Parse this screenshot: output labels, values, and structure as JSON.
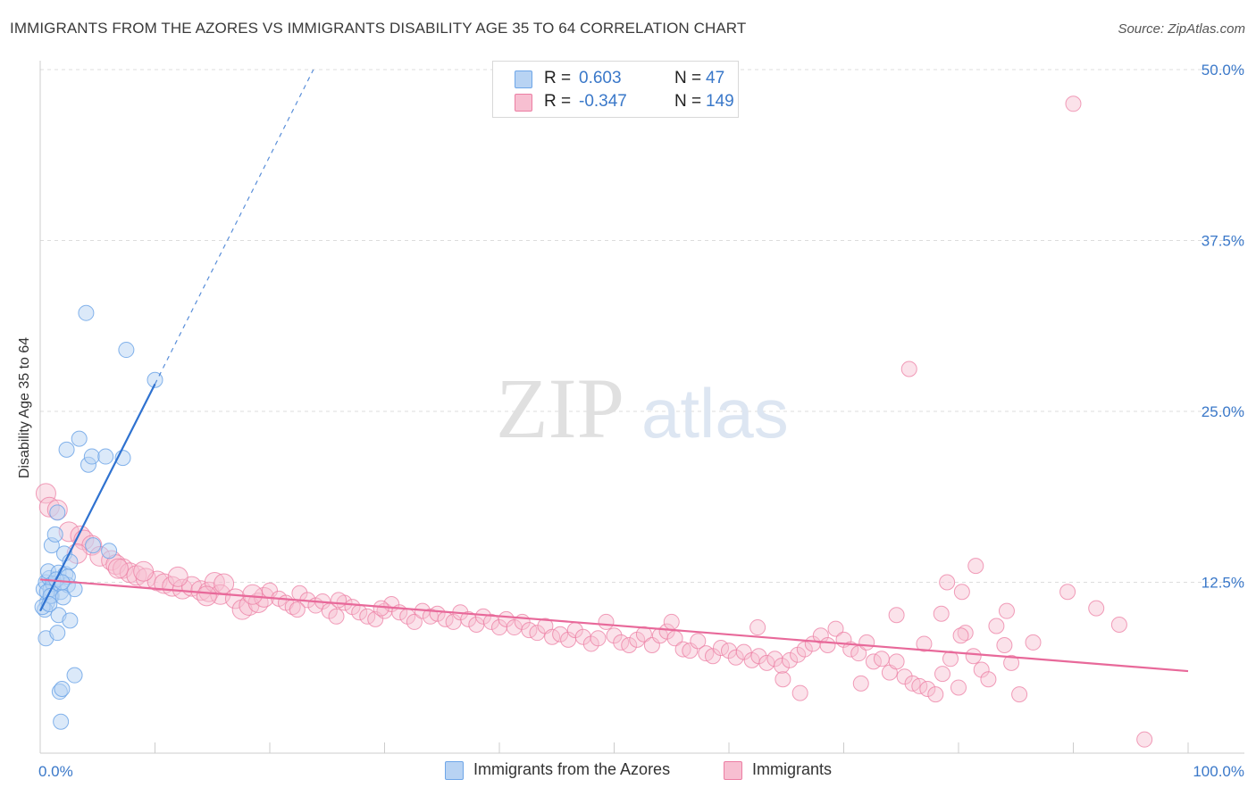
{
  "title": "IMMIGRANTS FROM THE AZORES VS IMMIGRANTS DISABILITY AGE 35 TO 64 CORRELATION CHART",
  "source": "Source: ZipAtlas.com",
  "watermark": {
    "zip": "ZIP",
    "atlas": "atlas"
  },
  "colors": {
    "blue": "#6ea6e8",
    "blue_fill": "#b8d3f3",
    "blue_line": "#2f72d0",
    "pink": "#ec7ea3",
    "pink_fill": "#f7bfd1",
    "pink_line": "#e8699a",
    "axis_text": "#3a78c9",
    "grid": "#dddddd"
  },
  "legend": {
    "r_label": "R =",
    "n_label": "N =",
    "rows": [
      {
        "r": "0.603",
        "n": "47"
      },
      {
        "r": "-0.347",
        "n": "149"
      }
    ]
  },
  "chart_data": {
    "type": "scatter",
    "title": "IMMIGRANTS FROM THE AZORES VS IMMIGRANTS DISABILITY AGE 35 TO 64 CORRELATION CHART",
    "xlabel": "",
    "ylabel": "Disability Age 35 to 64",
    "xlim": [
      0,
      100
    ],
    "ylim": [
      0,
      50
    ],
    "x_tick_labels": [
      "0.0%",
      "100.0%"
    ],
    "y_ticks": [
      12.5,
      25.0,
      37.5,
      50.0
    ],
    "y_tick_labels": [
      "12.5%",
      "25.0%",
      "37.5%",
      "50.0%"
    ],
    "grid": true,
    "series": [
      {
        "name": "Immigrants from the Azores",
        "r": 0.603,
        "n": 47,
        "trend": {
          "x1": 0.0,
          "y1": 10.4,
          "x2": 10.0,
          "y2": 27.0,
          "dash_to_x": 23.8,
          "dash_to_y": 50.0
        },
        "points": [
          [
            0.3,
            12.0
          ],
          [
            0.5,
            12.5
          ],
          [
            0.6,
            11.0
          ],
          [
            0.4,
            10.5
          ],
          [
            0.8,
            12.8
          ],
          [
            1.0,
            11.5
          ],
          [
            1.2,
            12.3
          ],
          [
            0.7,
            13.3
          ],
          [
            0.2,
            10.7
          ],
          [
            0.5,
            8.4
          ],
          [
            1.0,
            15.2
          ],
          [
            1.3,
            16.0
          ],
          [
            1.5,
            17.6
          ],
          [
            1.6,
            10.1
          ],
          [
            1.5,
            8.8
          ],
          [
            1.8,
            11.8
          ],
          [
            1.6,
            13.2
          ],
          [
            2.2,
            13.1
          ],
          [
            2.4,
            12.3
          ],
          [
            2.1,
            14.6
          ],
          [
            2.6,
            14.0
          ],
          [
            2.4,
            12.9
          ],
          [
            2.6,
            9.7
          ],
          [
            3.0,
            12.0
          ],
          [
            2.3,
            22.2
          ],
          [
            3.4,
            23.0
          ],
          [
            4.2,
            21.1
          ],
          [
            4.5,
            21.7
          ],
          [
            5.7,
            21.7
          ],
          [
            4.6,
            15.2
          ],
          [
            7.2,
            21.6
          ],
          [
            7.5,
            29.5
          ],
          [
            10.0,
            27.3
          ],
          [
            4.0,
            32.2
          ],
          [
            1.7,
            4.5
          ],
          [
            1.9,
            4.7
          ],
          [
            3.0,
            5.7
          ],
          [
            1.8,
            2.3
          ],
          [
            6.0,
            14.8
          ],
          [
            0.9,
            12.0
          ],
          [
            1.1,
            12.4
          ],
          [
            0.6,
            11.8
          ],
          [
            0.9,
            11.5
          ],
          [
            1.4,
            12.7
          ],
          [
            1.9,
            12.5
          ],
          [
            2.0,
            11.4
          ],
          [
            0.8,
            10.9
          ]
        ]
      },
      {
        "name": "Immigrants",
        "r": -0.347,
        "n": 149,
        "trend": {
          "x1": 0.0,
          "y1": 12.7,
          "x2": 100.0,
          "y2": 6.0
        },
        "points": [
          [
            0.5,
            19.0
          ],
          [
            0.8,
            18.0
          ],
          [
            1.5,
            17.8
          ],
          [
            2.5,
            16.2
          ],
          [
            3.5,
            15.9
          ],
          [
            3.8,
            15.6
          ],
          [
            4.5,
            15.2
          ],
          [
            5.2,
            14.4
          ],
          [
            6.2,
            14.1
          ],
          [
            6.6,
            13.8
          ],
          [
            7.2,
            13.5
          ],
          [
            7.8,
            13.2
          ],
          [
            8.4,
            13.0
          ],
          [
            9.2,
            12.8
          ],
          [
            10.2,
            12.6
          ],
          [
            10.8,
            12.4
          ],
          [
            11.5,
            12.2
          ],
          [
            12.4,
            12.0
          ],
          [
            13.2,
            12.2
          ],
          [
            14.0,
            11.9
          ],
          [
            14.7,
            11.8
          ],
          [
            15.2,
            12.5
          ],
          [
            15.7,
            11.6
          ],
          [
            16.0,
            12.4
          ],
          [
            17.0,
            11.3
          ],
          [
            17.6,
            10.5
          ],
          [
            18.2,
            10.8
          ],
          [
            19.0,
            11.0
          ],
          [
            19.5,
            11.4
          ],
          [
            20.0,
            11.9
          ],
          [
            20.8,
            11.3
          ],
          [
            21.4,
            11.0
          ],
          [
            22.0,
            10.7
          ],
          [
            22.6,
            11.7
          ],
          [
            23.3,
            11.2
          ],
          [
            24.0,
            10.8
          ],
          [
            24.6,
            11.1
          ],
          [
            25.2,
            10.4
          ],
          [
            25.8,
            10.0
          ],
          [
            26.5,
            11.0
          ],
          [
            27.2,
            10.7
          ],
          [
            27.8,
            10.3
          ],
          [
            28.5,
            10.0
          ],
          [
            29.2,
            9.8
          ],
          [
            30.0,
            10.4
          ],
          [
            30.6,
            10.9
          ],
          [
            31.3,
            10.3
          ],
          [
            32.0,
            10.0
          ],
          [
            32.6,
            9.6
          ],
          [
            33.3,
            10.4
          ],
          [
            34.0,
            10.0
          ],
          [
            34.6,
            10.2
          ],
          [
            35.3,
            9.8
          ],
          [
            36.0,
            9.6
          ],
          [
            36.6,
            10.3
          ],
          [
            37.3,
            9.8
          ],
          [
            38.0,
            9.4
          ],
          [
            38.6,
            10.0
          ],
          [
            39.3,
            9.6
          ],
          [
            40.0,
            9.2
          ],
          [
            40.6,
            9.8
          ],
          [
            41.3,
            9.2
          ],
          [
            42.0,
            9.6
          ],
          [
            42.6,
            9.0
          ],
          [
            43.3,
            8.8
          ],
          [
            44.0,
            9.3
          ],
          [
            44.6,
            8.5
          ],
          [
            45.3,
            8.7
          ],
          [
            46.0,
            8.3
          ],
          [
            46.6,
            9.0
          ],
          [
            47.3,
            8.5
          ],
          [
            48.0,
            8.0
          ],
          [
            48.6,
            8.4
          ],
          [
            49.3,
            9.6
          ],
          [
            50.0,
            8.6
          ],
          [
            50.6,
            8.1
          ],
          [
            51.3,
            7.9
          ],
          [
            52.0,
            8.3
          ],
          [
            52.6,
            8.7
          ],
          [
            53.3,
            7.9
          ],
          [
            54.0,
            8.6
          ],
          [
            54.6,
            8.9
          ],
          [
            55.3,
            8.4
          ],
          [
            56.0,
            7.6
          ],
          [
            56.6,
            7.5
          ],
          [
            57.3,
            8.2
          ],
          [
            58.0,
            7.3
          ],
          [
            58.6,
            7.1
          ],
          [
            59.3,
            7.7
          ],
          [
            60.0,
            7.5
          ],
          [
            60.6,
            7.0
          ],
          [
            61.3,
            7.4
          ],
          [
            62.0,
            6.8
          ],
          [
            62.6,
            7.1
          ],
          [
            63.3,
            6.6
          ],
          [
            64.0,
            6.9
          ],
          [
            64.6,
            6.4
          ],
          [
            65.3,
            6.8
          ],
          [
            66.0,
            7.2
          ],
          [
            66.6,
            7.6
          ],
          [
            67.3,
            8.0
          ],
          [
            68.0,
            8.6
          ],
          [
            68.6,
            7.9
          ],
          [
            69.3,
            9.1
          ],
          [
            70.0,
            8.3
          ],
          [
            70.6,
            7.6
          ],
          [
            71.3,
            7.3
          ],
          [
            72.0,
            8.1
          ],
          [
            72.6,
            6.7
          ],
          [
            73.3,
            6.9
          ],
          [
            74.0,
            5.9
          ],
          [
            74.6,
            6.7
          ],
          [
            75.3,
            5.6
          ],
          [
            76.0,
            5.1
          ],
          [
            76.6,
            4.9
          ],
          [
            77.3,
            4.7
          ],
          [
            78.0,
            4.3
          ],
          [
            78.6,
            5.8
          ],
          [
            79.3,
            6.9
          ],
          [
            80.0,
            4.8
          ],
          [
            80.6,
            8.8
          ],
          [
            81.3,
            7.1
          ],
          [
            82.0,
            6.1
          ],
          [
            82.6,
            5.4
          ],
          [
            83.3,
            9.3
          ],
          [
            84.0,
            7.9
          ],
          [
            84.6,
            6.6
          ],
          [
            85.3,
            4.3
          ],
          [
            55.0,
            9.6
          ],
          [
            62.5,
            9.2
          ],
          [
            66.2,
            4.4
          ],
          [
            71.5,
            5.1
          ],
          [
            64.7,
            5.4
          ],
          [
            77.0,
            8.0
          ],
          [
            80.2,
            8.6
          ],
          [
            86.5,
            8.1
          ],
          [
            81.5,
            13.7
          ],
          [
            75.7,
            28.1
          ],
          [
            79.0,
            12.5
          ],
          [
            80.3,
            11.8
          ],
          [
            84.2,
            10.4
          ],
          [
            78.5,
            10.2
          ],
          [
            74.6,
            10.1
          ],
          [
            90.0,
            47.5
          ],
          [
            89.5,
            11.8
          ],
          [
            92.0,
            10.6
          ],
          [
            94.0,
            9.4
          ],
          [
            96.2,
            1.0
          ],
          [
            3.2,
            14.6
          ],
          [
            6.8,
            13.5
          ],
          [
            9.0,
            13.3
          ],
          [
            12.0,
            12.9
          ],
          [
            14.5,
            11.5
          ],
          [
            18.5,
            11.6
          ],
          [
            22.4,
            10.5
          ],
          [
            26.0,
            11.2
          ],
          [
            29.7,
            10.6
          ]
        ]
      }
    ]
  }
}
